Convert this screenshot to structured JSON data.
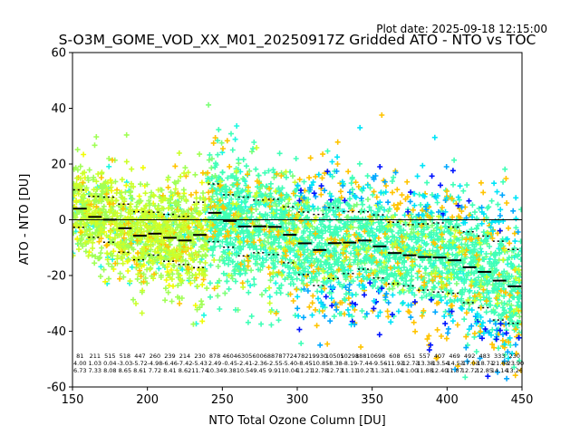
{
  "plot_date": "Plot date: 2025-09-18 12:15:00",
  "chart_data": {
    "type": "scatter",
    "title": "S-O3M_GOME_VOD_XX_M01_20250917Z Gridded ATO - NTO vs TOC",
    "xlabel": "NTO Total Ozone Column [DU]",
    "ylabel": "ATO - NTO [DU]",
    "xlim": [
      150,
      450
    ],
    "ylim": [
      -60,
      60
    ],
    "xticks": [
      150,
      200,
      250,
      300,
      350,
      400,
      450
    ],
    "yticks": [
      -60,
      -40,
      -20,
      0,
      20,
      40,
      60
    ],
    "grid": false,
    "zero_line": 0,
    "bin_width": 10,
    "colors": {
      "point_colors": [
        "#40ffb7",
        "#a0ff56",
        "#7dff79",
        "#ccff2a",
        "#f1fc06",
        "#ffc400",
        "#1ef9e0",
        "#00a8ff",
        "#0014ff",
        "#00e4f8"
      ],
      "mean_line": "#000000"
    },
    "bin_means": [
      {
        "x": 155,
        "mean": 4.0,
        "std": 6.73,
        "n": "81"
      },
      {
        "x": 165,
        "mean": 1.03,
        "std": 7.33,
        "n": "211"
      },
      {
        "x": 175,
        "mean": 0.04,
        "std": 8.08,
        "n": "515"
      },
      {
        "x": 185,
        "mean": -3.03,
        "std": 8.65,
        "n": "518"
      },
      {
        "x": 195,
        "mean": -5.72,
        "std": 8.61,
        "n": "447"
      },
      {
        "x": 205,
        "mean": -4.98,
        "std": 7.72,
        "n": "260"
      },
      {
        "x": 215,
        "mean": -6.46,
        "std": 8.41,
        "n": "239"
      },
      {
        "x": 225,
        "mean": -7.42,
        "std": 8.62,
        "n": "214"
      },
      {
        "x": 235,
        "mean": -5.43,
        "std": 11.74,
        "n": "230"
      },
      {
        "x": 245,
        "mean": 2.49,
        "std": 10.34,
        "n": "878"
      },
      {
        "x": 255,
        "mean": -0.45,
        "std": 9.38,
        "n": "4604"
      },
      {
        "x": 265,
        "mean": -2.41,
        "std": 10.54,
        "n": "6305"
      },
      {
        "x": 275,
        "mean": -2.36,
        "std": 9.45,
        "n": "6006"
      },
      {
        "x": 285,
        "mean": -2.55,
        "std": 9.91,
        "n": "8878"
      },
      {
        "x": 295,
        "mean": -5.4,
        "std": 10.04,
        "n": "7724"
      },
      {
        "x": 305,
        "mean": -8.45,
        "std": 11.21,
        "n": "7821"
      },
      {
        "x": 315,
        "mean": -10.85,
        "std": 12.78,
        "n": "9930"
      },
      {
        "x": 325,
        "mean": -8.38,
        "std": 12.73,
        "n": "10505"
      },
      {
        "x": 335,
        "mean": -8.19,
        "std": 11.11,
        "n": "10298"
      },
      {
        "x": 345,
        "mean": -7.44,
        "std": 10.27,
        "n": "18810"
      },
      {
        "x": 355,
        "mean": -9.56,
        "std": 11.32,
        "n": "698"
      },
      {
        "x": 365,
        "mean": -11.93,
        "std": 11.04,
        "n": "608"
      },
      {
        "x": 375,
        "mean": -12.73,
        "std": 11.0,
        "n": "651"
      },
      {
        "x": 385,
        "mean": -13.38,
        "std": 11.88,
        "n": "557"
      },
      {
        "x": 395,
        "mean": -13.54,
        "std": 12.4,
        "n": "407"
      },
      {
        "x": 405,
        "mean": -14.53,
        "std": 11.87,
        "n": "469"
      },
      {
        "x": 415,
        "mean": -17.03,
        "std": 12.72,
        "n": "492"
      },
      {
        "x": 425,
        "mean": -18.71,
        "std": 12.85,
        "n": "483"
      },
      {
        "x": 435,
        "mean": -21.83,
        "std": 14.14,
        "n": "333"
      },
      {
        "x": 445,
        "mean": -23.9,
        "std": 13.26,
        "n": "230"
      }
    ]
  }
}
